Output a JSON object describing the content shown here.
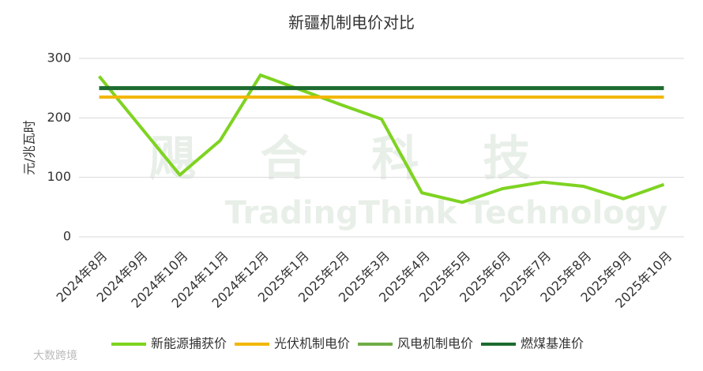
{
  "chart_data": {
    "type": "line",
    "title": "新疆机制电价对比",
    "y_label": "元/兆瓦时",
    "categories": [
      "2024年8月",
      "2024年9月",
      "2024年10月",
      "2024年11月",
      "2024年12月",
      "2025年1月",
      "2025年2月",
      "2025年3月",
      "2025年4月",
      "2025年5月",
      "2025年6月",
      "2025年7月",
      "2025年8月",
      "2025年9月",
      "2025年10月"
    ],
    "series": [
      {
        "name": "新能源捕获价",
        "color": "#7ed321",
        "values": [
          270,
          187,
          104,
          162,
          272,
          247,
          222,
          198,
          74,
          58,
          81,
          92,
          85,
          64,
          88
        ]
      },
      {
        "name": "光伏机制电价",
        "color": "#f2b705",
        "values": [
          235,
          235,
          235,
          235,
          235,
          235,
          235,
          235,
          235,
          235,
          235,
          235,
          235,
          235,
          235
        ]
      },
      {
        "name": "风电机制电价",
        "color": "#70ad47",
        "values": [
          250,
          250,
          250,
          250,
          250,
          250,
          250,
          250,
          250,
          250,
          250,
          250,
          250,
          250,
          250
        ]
      },
      {
        "name": "燃煤基准价",
        "color": "#1d6b2f",
        "values": [
          250,
          250,
          250,
          250,
          250,
          250,
          250,
          250,
          250,
          250,
          250,
          250,
          250,
          250,
          250
        ]
      }
    ],
    "ylim": [
      0,
      300
    ],
    "yticks": [
      0,
      100,
      200,
      300
    ],
    "grid": true,
    "legend": "bottom",
    "watermark": {
      "brand": "飓 合 科 技",
      "english": "TradingThink Technology",
      "source": "大数跨境"
    }
  }
}
